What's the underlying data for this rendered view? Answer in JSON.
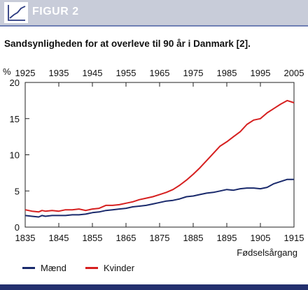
{
  "header": {
    "label": "FIGUR 2",
    "icon": "line-chart-icon"
  },
  "caption": "Sandsynligheden for at overleve til 90 år i Danmark [2].",
  "chart_data": {
    "type": "line",
    "title": "Sandsynligheden for at overleve til 90 år i Danmark [2].",
    "xlabel": "Fødselsårgang",
    "ylabel": "%",
    "xlim": [
      1835,
      1915
    ],
    "ylim": [
      0,
      20
    ],
    "x_ticks": [
      1835,
      1845,
      1855,
      1865,
      1875,
      1885,
      1895,
      1905,
      1915
    ],
    "x_tick_labels": [
      "1835",
      "1845",
      "1855",
      "1865",
      "1875",
      "1885",
      "1895",
      "1905",
      "1915"
    ],
    "top_axis": {
      "offset_years": 90,
      "ticks": [
        1925,
        1935,
        1945,
        1955,
        1965,
        1975,
        1985,
        1995,
        2005
      ],
      "tick_labels": [
        "1925",
        "1935",
        "1945",
        "1955",
        "1965",
        "1975",
        "1985",
        "1995",
        "2005"
      ]
    },
    "y_ticks": [
      0,
      5,
      10,
      15,
      20
    ],
    "y_tick_labels": [
      "0",
      "5",
      "10",
      "15",
      "20"
    ],
    "grid": false,
    "legend_position": "bottom-left",
    "series": [
      {
        "name": "Mænd",
        "color": "#1a2a6c",
        "points": [
          [
            1835,
            1.6
          ],
          [
            1837,
            1.5
          ],
          [
            1839,
            1.4
          ],
          [
            1840,
            1.6
          ],
          [
            1841,
            1.5
          ],
          [
            1843,
            1.6
          ],
          [
            1845,
            1.6
          ],
          [
            1847,
            1.6
          ],
          [
            1849,
            1.7
          ],
          [
            1851,
            1.7
          ],
          [
            1853,
            1.8
          ],
          [
            1855,
            2.0
          ],
          [
            1857,
            2.1
          ],
          [
            1859,
            2.3
          ],
          [
            1861,
            2.4
          ],
          [
            1863,
            2.5
          ],
          [
            1865,
            2.6
          ],
          [
            1867,
            2.8
          ],
          [
            1869,
            2.9
          ],
          [
            1871,
            3.0
          ],
          [
            1873,
            3.2
          ],
          [
            1875,
            3.4
          ],
          [
            1877,
            3.6
          ],
          [
            1879,
            3.7
          ],
          [
            1881,
            3.9
          ],
          [
            1883,
            4.2
          ],
          [
            1885,
            4.3
          ],
          [
            1887,
            4.5
          ],
          [
            1889,
            4.7
          ],
          [
            1891,
            4.8
          ],
          [
            1893,
            5.0
          ],
          [
            1895,
            5.2
          ],
          [
            1897,
            5.1
          ],
          [
            1899,
            5.3
          ],
          [
            1901,
            5.4
          ],
          [
            1903,
            5.4
          ],
          [
            1905,
            5.3
          ],
          [
            1907,
            5.5
          ],
          [
            1909,
            6.0
          ],
          [
            1911,
            6.3
          ],
          [
            1913,
            6.6
          ],
          [
            1915,
            6.6
          ]
        ]
      },
      {
        "name": "Kvinder",
        "color": "#d62020",
        "points": [
          [
            1835,
            2.4
          ],
          [
            1837,
            2.2
          ],
          [
            1839,
            2.1
          ],
          [
            1840,
            2.3
          ],
          [
            1841,
            2.2
          ],
          [
            1843,
            2.3
          ],
          [
            1845,
            2.2
          ],
          [
            1847,
            2.4
          ],
          [
            1849,
            2.4
          ],
          [
            1851,
            2.5
          ],
          [
            1853,
            2.3
          ],
          [
            1855,
            2.5
          ],
          [
            1857,
            2.6
          ],
          [
            1859,
            3.0
          ],
          [
            1861,
            3.0
          ],
          [
            1863,
            3.1
          ],
          [
            1865,
            3.3
          ],
          [
            1867,
            3.5
          ],
          [
            1869,
            3.8
          ],
          [
            1871,
            4.0
          ],
          [
            1873,
            4.2
          ],
          [
            1875,
            4.5
          ],
          [
            1877,
            4.8
          ],
          [
            1879,
            5.2
          ],
          [
            1881,
            5.8
          ],
          [
            1883,
            6.5
          ],
          [
            1885,
            7.3
          ],
          [
            1887,
            8.2
          ],
          [
            1889,
            9.2
          ],
          [
            1891,
            10.2
          ],
          [
            1893,
            11.2
          ],
          [
            1895,
            11.8
          ],
          [
            1897,
            12.5
          ],
          [
            1899,
            13.2
          ],
          [
            1901,
            14.2
          ],
          [
            1903,
            14.8
          ],
          [
            1905,
            15.0
          ],
          [
            1907,
            15.8
          ],
          [
            1909,
            16.4
          ],
          [
            1911,
            17.0
          ],
          [
            1913,
            17.5
          ],
          [
            1915,
            17.2
          ]
        ]
      }
    ]
  }
}
